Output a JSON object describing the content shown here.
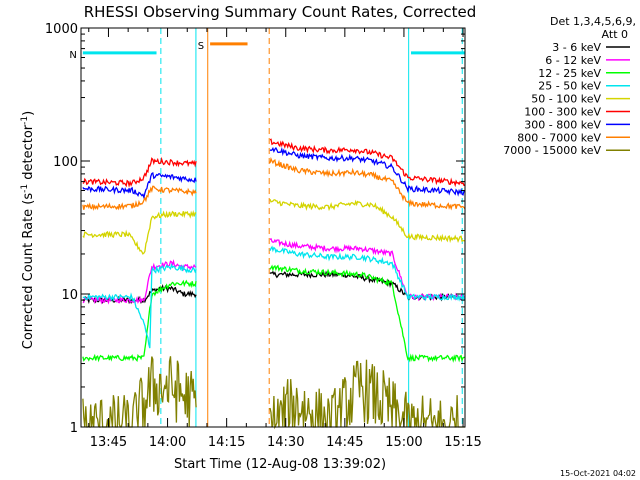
{
  "chart_data": {
    "type": "line",
    "title": "RHESSI Observing Summary Count Rates, Corrected",
    "xlabel": "Start Time (12-Aug-08 13:39:02)",
    "ylabel_main": "Corrected Count Rate (s",
    "ylabel_sup1": "-1",
    "ylabel_mid": " detector",
    "ylabel_sup2": "-1",
    "ylabel_end": ")",
    "footer": "15-Oct-2021 04:02",
    "x_range_min": [
      39.03,
      136.5
    ],
    "x_ticks": [
      {
        "min": 46,
        "label": "13:45"
      },
      {
        "min": 61,
        "label": "14:00"
      },
      {
        "min": 76,
        "label": "14:15"
      },
      {
        "min": 91,
        "label": "14:30"
      },
      {
        "min": 106,
        "label": "14:45"
      },
      {
        "min": 121,
        "label": "15:00"
      },
      {
        "min": 136,
        "label": "15:15"
      }
    ],
    "y_scale": "log",
    "ylim": [
      1,
      1000
    ],
    "y_ticks": [
      {
        "v": 1,
        "label": "1"
      },
      {
        "v": 10,
        "label": "10"
      },
      {
        "v": 100,
        "label": "100"
      },
      {
        "v": 1000,
        "label": "1000"
      }
    ],
    "legend": {
      "header1": "Det 1,3,4,5,6,9,",
      "header2": "Att 0",
      "placement": "top-right outside"
    },
    "flags": [
      {
        "label": "N",
        "color": "#00e5ee",
        "y": 650,
        "segments": [
          [
            39.5,
            58.2
          ],
          [
            122.8,
            136.5
          ]
        ]
      },
      {
        "label": "S",
        "color": "#ff7f00",
        "y": 760,
        "segments": [
          [
            71.8,
            81.3
          ]
        ]
      }
    ],
    "vlines": [
      {
        "min": 59.3,
        "color": "#00e5ee",
        "style": "dashed"
      },
      {
        "min": 68.2,
        "color": "#00e5ee",
        "style": "solid"
      },
      {
        "min": 122.2,
        "color": "#00e5ee",
        "style": "solid"
      },
      {
        "min": 135.8,
        "color": "#00e5ee",
        "style": "dashed"
      },
      {
        "min": 71.2,
        "color": "#ff7f00",
        "style": "solid"
      },
      {
        "min": 86.8,
        "color": "#ff7f00",
        "style": "dashed"
      }
    ],
    "gaps_min": [
      [
        68.3,
        86.8
      ]
    ],
    "series": [
      {
        "name": "3 - 6 keV",
        "color": "#000000",
        "points": [
          [
            39.5,
            9
          ],
          [
            55,
            9
          ],
          [
            57,
            10.5
          ],
          [
            59,
            11
          ],
          [
            62,
            11
          ],
          [
            65,
            10
          ],
          [
            68,
            10
          ],
          [
            87,
            14
          ],
          [
            92,
            14
          ],
          [
            100,
            14
          ],
          [
            106,
            14
          ],
          [
            112,
            13
          ],
          [
            118,
            12
          ],
          [
            122,
            9.5
          ],
          [
            136.5,
            9.5
          ]
        ]
      },
      {
        "name": "6 - 12 keV",
        "color": "#ff00ff",
        "points": [
          [
            39.5,
            9
          ],
          [
            55,
            9
          ],
          [
            57,
            16
          ],
          [
            62,
            17
          ],
          [
            65,
            16
          ],
          [
            68,
            16
          ],
          [
            87,
            25
          ],
          [
            94,
            23
          ],
          [
            102,
            22
          ],
          [
            110,
            22
          ],
          [
            118,
            20
          ],
          [
            122,
            9.5
          ],
          [
            136.5,
            9.5
          ]
        ]
      },
      {
        "name": "12 - 25 keV",
        "color": "#00ff00",
        "points": [
          [
            39.5,
            3.3
          ],
          [
            55,
            3.3
          ],
          [
            57,
            10
          ],
          [
            62,
            12
          ],
          [
            68,
            12
          ],
          [
            87,
            16
          ],
          [
            94,
            15
          ],
          [
            102,
            14.5
          ],
          [
            110,
            14
          ],
          [
            118,
            12
          ],
          [
            122,
            3.3
          ],
          [
            136.5,
            3.3
          ]
        ]
      },
      {
        "name": "25 - 50 keV",
        "color": "#00e5ee",
        "points": [
          [
            39.5,
            9.5
          ],
          [
            52,
            9.5
          ],
          [
            55,
            6
          ],
          [
            56.5,
            4
          ],
          [
            57,
            15
          ],
          [
            62,
            16
          ],
          [
            68,
            15
          ],
          [
            87,
            22
          ],
          [
            94,
            20
          ],
          [
            102,
            19
          ],
          [
            110,
            19
          ],
          [
            118,
            17
          ],
          [
            122,
            9.5
          ],
          [
            136.5,
            9.5
          ]
        ]
      },
      {
        "name": "50 - 100 keV",
        "color": "#d4d400",
        "points": [
          [
            39.5,
            28
          ],
          [
            51,
            28
          ],
          [
            55,
            20
          ],
          [
            57,
            38
          ],
          [
            62,
            40
          ],
          [
            68,
            40
          ],
          [
            87,
            50
          ],
          [
            94,
            46
          ],
          [
            102,
            45
          ],
          [
            108,
            48
          ],
          [
            113,
            47
          ],
          [
            118,
            38
          ],
          [
            122,
            27
          ],
          [
            136.5,
            26
          ]
        ]
      },
      {
        "name": "100 - 300 keV",
        "color": "#ff0000",
        "points": [
          [
            39.5,
            70
          ],
          [
            52,
            68
          ],
          [
            55,
            75
          ],
          [
            57,
            100
          ],
          [
            62,
            98
          ],
          [
            68,
            95
          ],
          [
            87,
            140
          ],
          [
            94,
            125
          ],
          [
            102,
            120
          ],
          [
            108,
            122
          ],
          [
            113,
            115
          ],
          [
            118,
            105
          ],
          [
            122,
            75
          ],
          [
            136.5,
            68
          ]
        ]
      },
      {
        "name": "300 - 800 keV",
        "color": "#0000ff",
        "points": [
          [
            39.5,
            62
          ],
          [
            52,
            60
          ],
          [
            55,
            55
          ],
          [
            57,
            78
          ],
          [
            62,
            76
          ],
          [
            68,
            72
          ],
          [
            87,
            125
          ],
          [
            94,
            110
          ],
          [
            102,
            105
          ],
          [
            108,
            105
          ],
          [
            113,
            100
          ],
          [
            118,
            90
          ],
          [
            122,
            62
          ],
          [
            136.5,
            58
          ]
        ]
      },
      {
        "name": "800 - 7000 keV",
        "color": "#ff7f00",
        "points": [
          [
            39.5,
            45
          ],
          [
            52,
            46
          ],
          [
            55,
            50
          ],
          [
            57,
            62
          ],
          [
            62,
            60
          ],
          [
            68,
            58
          ],
          [
            87,
            100
          ],
          [
            94,
            85
          ],
          [
            102,
            80
          ],
          [
            108,
            82
          ],
          [
            113,
            78
          ],
          [
            118,
            70
          ],
          [
            122,
            48
          ],
          [
            136.5,
            45
          ]
        ]
      },
      {
        "name": "7000 - 15000 keV",
        "color": "#808000",
        "points": [
          [
            39.5,
            1
          ],
          [
            52,
            1
          ],
          [
            57,
            2
          ],
          [
            62,
            2
          ],
          [
            68,
            1.5
          ],
          [
            87,
            1
          ],
          [
            94,
            1.5
          ],
          [
            102,
            1
          ],
          [
            110,
            2
          ],
          [
            116,
            1.5
          ],
          [
            122,
            1
          ],
          [
            136.5,
            1
          ]
        ]
      }
    ]
  }
}
